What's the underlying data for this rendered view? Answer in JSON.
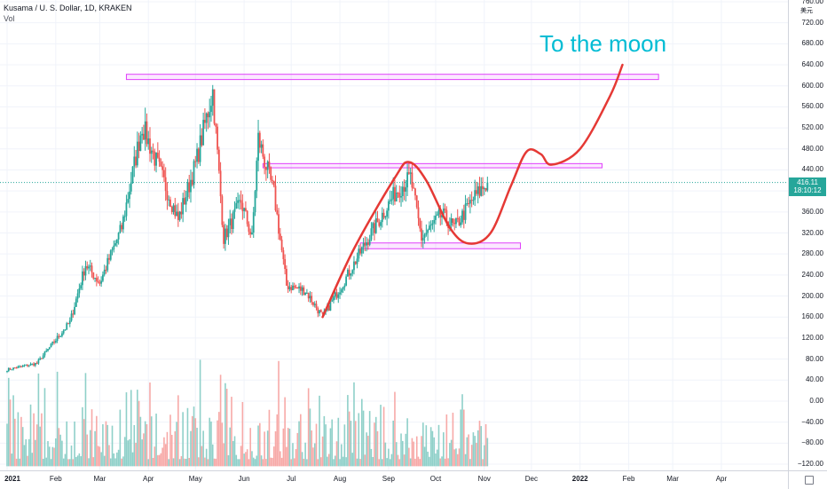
{
  "header": {
    "symbol_line": "Kusama / U. S. Dollar, 1D, KRAKEN",
    "indicator": "Vol"
  },
  "price_axis": {
    "currency": "美元",
    "ticks": [
      "760.00",
      "720.00",
      "680.00",
      "640.00",
      "600.00",
      "560.00",
      "520.00",
      "480.00",
      "440.00",
      "400.00",
      "360.00",
      "320.00",
      "280.00",
      "240.00",
      "200.00",
      "160.00",
      "120.00",
      "80.00",
      "40.00",
      "0.00",
      "−40.00",
      "−80.00",
      "−120.00"
    ],
    "last_price": "416.11",
    "countdown": "18:10:12"
  },
  "time_axis": {
    "labels": [
      {
        "text": "2021",
        "bold": true
      },
      {
        "text": "Feb",
        "bold": false
      },
      {
        "text": "Mar",
        "bold": false
      },
      {
        "text": "Apr",
        "bold": false
      },
      {
        "text": "May",
        "bold": false
      },
      {
        "text": "Jun",
        "bold": false
      },
      {
        "text": "Jul",
        "bold": false
      },
      {
        "text": "Aug",
        "bold": false
      },
      {
        "text": "Sep",
        "bold": false
      },
      {
        "text": "Oct",
        "bold": false
      },
      {
        "text": "Nov",
        "bold": false
      },
      {
        "text": "Dec",
        "bold": false
      },
      {
        "text": "2022",
        "bold": true
      },
      {
        "text": "Feb",
        "bold": false
      },
      {
        "text": "Mar",
        "bold": false
      },
      {
        "text": "Apr",
        "bold": false
      }
    ]
  },
  "annotation": {
    "text": "To the moon",
    "color": "#00bcd4"
  },
  "colors": {
    "up": "#26a69a",
    "down": "#ef5350",
    "vol_up": "#8fd0c9",
    "vol_down": "#f7a9a7",
    "zone": "#e040fb",
    "projection": "#e53935"
  },
  "chart_data": {
    "type": "candlestick",
    "ylim": [
      -130,
      760
    ],
    "last_price": 416.11,
    "key_path": [
      {
        "x": "2021-01-01",
        "y": 60
      },
      {
        "x": "2021-01-20",
        "y": 72
      },
      {
        "x": "2021-02-10",
        "y": 150
      },
      {
        "x": "2021-02-20",
        "y": 260
      },
      {
        "x": "2021-03-01",
        "y": 225
      },
      {
        "x": "2021-03-15",
        "y": 330
      },
      {
        "x": "2021-03-28",
        "y": 525
      },
      {
        "x": "2021-04-08",
        "y": 440
      },
      {
        "x": "2021-04-20",
        "y": 345
      },
      {
        "x": "2021-05-01",
        "y": 450
      },
      {
        "x": "2021-05-12",
        "y": 590
      },
      {
        "x": "2021-05-19",
        "y": 310
      },
      {
        "x": "2021-05-30",
        "y": 380
      },
      {
        "x": "2021-06-06",
        "y": 310
      },
      {
        "x": "2021-06-10",
        "y": 500
      },
      {
        "x": "2021-06-20",
        "y": 395
      },
      {
        "x": "2021-06-28",
        "y": 220
      },
      {
        "x": "2021-07-10",
        "y": 210
      },
      {
        "x": "2021-07-21",
        "y": 160
      },
      {
        "x": "2021-08-05",
        "y": 235
      },
      {
        "x": "2021-08-20",
        "y": 315
      },
      {
        "x": "2021-09-06",
        "y": 400
      },
      {
        "x": "2021-09-15",
        "y": 425
      },
      {
        "x": "2021-09-22",
        "y": 310
      },
      {
        "x": "2021-10-05",
        "y": 355
      },
      {
        "x": "2021-10-13",
        "y": 330
      },
      {
        "x": "2021-10-25",
        "y": 385
      },
      {
        "x": "2021-11-03",
        "y": 416.11
      }
    ],
    "zones": [
      {
        "x_start": "2021-03-18",
        "x_end": "2022-02-20",
        "y_low": 612,
        "y_high": 622
      },
      {
        "x_start": "2021-06-13",
        "x_end": "2022-01-15",
        "y_low": 444,
        "y_high": 452
      },
      {
        "x_start": "2021-08-14",
        "x_end": "2021-11-24",
        "y_low": 290,
        "y_high": 301
      }
    ],
    "projection_path": [
      {
        "x": "2021-07-21",
        "y": 160
      },
      {
        "x": "2021-08-10",
        "y": 290
      },
      {
        "x": "2021-09-05",
        "y": 425
      },
      {
        "x": "2021-09-14",
        "y": 455
      },
      {
        "x": "2021-09-25",
        "y": 420
      },
      {
        "x": "2021-10-10",
        "y": 330
      },
      {
        "x": "2021-10-22",
        "y": 300
      },
      {
        "x": "2021-11-05",
        "y": 320
      },
      {
        "x": "2021-11-18",
        "y": 410
      },
      {
        "x": "2021-11-28",
        "y": 475
      },
      {
        "x": "2021-12-07",
        "y": 470
      },
      {
        "x": "2021-12-14",
        "y": 450
      },
      {
        "x": "2022-01-01",
        "y": 480
      },
      {
        "x": "2022-01-20",
        "y": 580
      },
      {
        "x": "2022-01-28",
        "y": 640
      }
    ]
  }
}
